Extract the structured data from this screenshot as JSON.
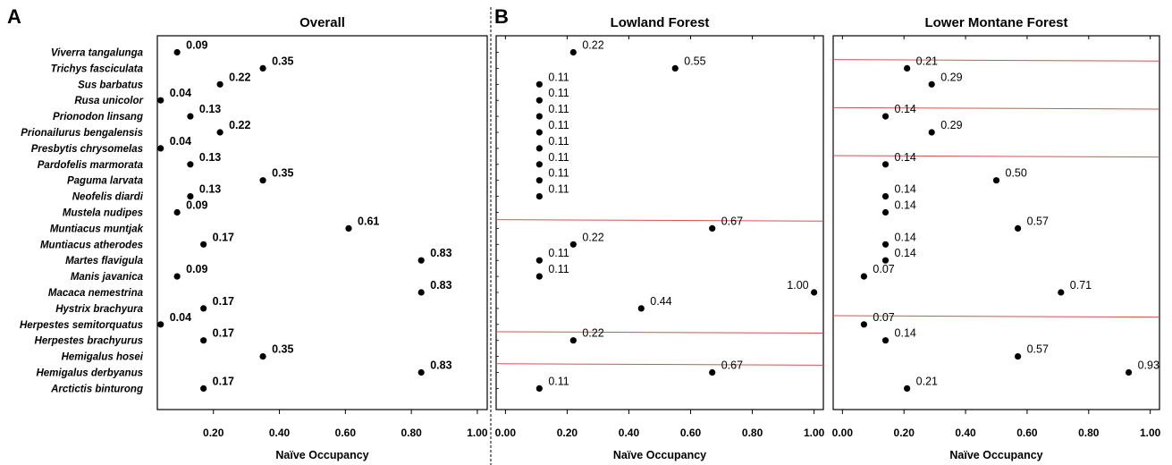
{
  "panel_letters": [
    "A",
    "B"
  ],
  "chart_data": [
    {
      "type": "scatter",
      "title": "Overall",
      "xlabel": "Naïve Occupancy",
      "xlim": [
        0.03,
        1.03
      ],
      "xticks": [
        "0.20",
        "0.40",
        "0.60",
        "0.80",
        "1.00"
      ],
      "categories": [
        "Viverra tangalunga",
        "Trichys fasciculata",
        "Sus barbatus",
        "Rusa unicolor",
        "Prionodon linsang",
        "Prionailurus bengalensis",
        "Presbytis chrysomelas",
        "Pardofelis marmorata",
        "Paguma larvata",
        "Neofelis diardi",
        "Mustela nudipes",
        "Muntiacus muntjak",
        "Muntiacus atherodes",
        "Martes flavigula",
        "Manis javanica",
        "Macaca nemestrina",
        "Hystrix brachyura",
        "Herpestes semitorquatus",
        "Herpestes brachyurus",
        "Hemigalus hosei",
        "Hemigalus derbyanus",
        "Arctictis binturong"
      ],
      "values": [
        0.09,
        0.35,
        0.22,
        0.04,
        0.13,
        0.22,
        0.04,
        0.13,
        0.35,
        0.13,
        0.09,
        0.61,
        0.17,
        0.83,
        0.09,
        0.83,
        0.17,
        0.04,
        0.17,
        0.35,
        0.83,
        0.17
      ],
      "labels": [
        "0.09",
        "0.35",
        "0.22",
        "0.04",
        "0.13",
        "0.22",
        "0.04",
        "0.13",
        "0.35",
        "0.13",
        "0.09",
        "0.61",
        "0.17",
        "0.83",
        "0.09",
        "0.83",
        "0.17",
        "0.04",
        "0.17",
        "0.35",
        "0.83",
        "0.17"
      ]
    },
    {
      "type": "scatter",
      "title": "Lowland Forest",
      "xlabel": "Naïve Occupancy",
      "xlim": [
        -0.03,
        1.03
      ],
      "xticks": [
        "0.00",
        "0.20",
        "0.40",
        "0.60",
        "0.80",
        "1.00"
      ],
      "values": [
        0.22,
        0.55,
        0.11,
        0.11,
        0.11,
        0.11,
        0.11,
        0.11,
        0.11,
        0.11,
        0.67,
        0.22,
        0.11,
        0.11,
        1.0,
        0.44,
        0.22,
        0.67,
        0.11
      ],
      "rows": [
        0,
        1,
        2,
        3,
        4,
        5,
        6,
        7,
        8,
        9,
        11,
        12,
        13,
        14,
        15,
        16,
        18,
        20,
        21
      ],
      "labels": [
        "0.22",
        "0.55",
        "0.11",
        "0.11",
        "0.11",
        "0.11",
        "0.11",
        "0.11",
        "0.11",
        "0.11",
        "0.67",
        "0.22",
        "0.11",
        "0.11",
        "1.00",
        "0.44",
        "0.22",
        "0.67",
        "0.11"
      ],
      "label_side": [
        "right",
        "right",
        "right",
        "right",
        "right",
        "right",
        "right",
        "right",
        "right",
        "right",
        "right",
        "right",
        "right",
        "right",
        "left",
        "right",
        "right",
        "right",
        "right"
      ],
      "separator_after_rows": [
        10,
        17,
        19
      ]
    },
    {
      "type": "scatter",
      "title": "Lower Montane Forest",
      "xlabel": "Naïve Occupancy",
      "xlim": [
        -0.03,
        1.03
      ],
      "xticks": [
        "0.00",
        "0.20",
        "0.40",
        "0.60",
        "0.80",
        "1.00"
      ],
      "values": [
        0.21,
        0.29,
        0.14,
        0.29,
        0.14,
        0.5,
        0.14,
        0.14,
        0.57,
        0.14,
        0.14,
        0.07,
        0.71,
        0.07,
        0.14,
        0.57,
        0.93,
        0.21
      ],
      "rows": [
        1,
        2,
        4,
        5,
        7,
        8,
        9,
        10,
        11,
        12,
        13,
        14,
        15,
        17,
        18,
        19,
        20,
        21
      ],
      "labels": [
        "0.21",
        "0.29",
        "0.14",
        "0.29",
        "0.14",
        "0.50",
        "0.14",
        "0.14",
        "0.57",
        "0.14",
        "0.14",
        "0.07",
        "0.71",
        "0.07",
        "0.14",
        "0.57",
        "0.93",
        "0.21"
      ],
      "label_side": [
        "right",
        "right",
        "right",
        "right",
        "right",
        "right",
        "right",
        "right",
        "right",
        "right",
        "right",
        "right",
        "right",
        "right",
        "right",
        "right",
        "right",
        "right"
      ],
      "separator_after_rows": [
        0,
        3,
        6,
        16
      ]
    }
  ],
  "colors": {
    "separator": "#d9534f",
    "point": "#000000",
    "axis": "#000000",
    "divider": "#000000"
  }
}
